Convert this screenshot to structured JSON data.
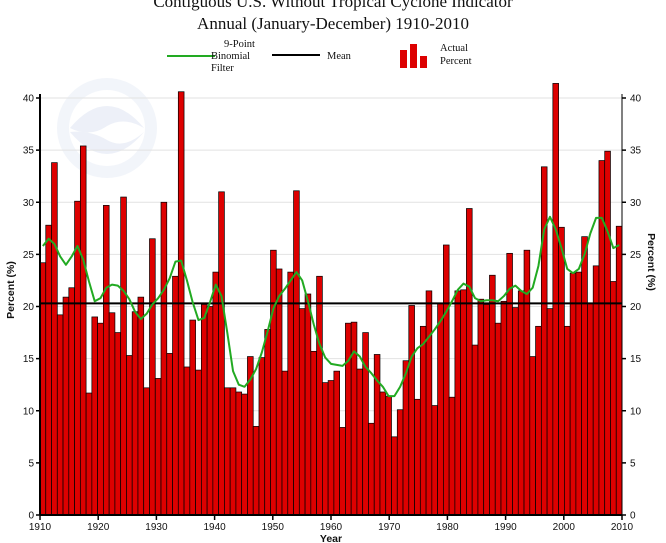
{
  "chart_data": {
    "type": "bar",
    "title": "Contiguous U.S. Without Tropical Cyclone Indicator",
    "subtitle": "Annual (January-December) 1910-2010",
    "xlabel": "Year",
    "ylabel": "Percent (%)",
    "ylabel_right": "Percent (%)",
    "xlim": [
      1910,
      2010
    ],
    "ylim": [
      0,
      40
    ],
    "x_ticks": [
      "1910",
      "1920",
      "1930",
      "1940",
      "1950",
      "1960",
      "1970",
      "1980",
      "1990",
      "2000",
      "2010"
    ],
    "y_ticks": [
      "0",
      "5",
      "10",
      "15",
      "20",
      "25",
      "30",
      "35",
      "40"
    ],
    "grid": true,
    "legend": {
      "position": "top",
      "filter_label": [
        "9-Point",
        "Binomial",
        "Filter"
      ],
      "mean_label": "Mean",
      "bars_label": [
        "Actual",
        "Percent"
      ]
    },
    "colors": {
      "bars": "#dd0000",
      "bar_edge": "#000000",
      "filter": "#22aa22",
      "mean": "#000000",
      "grid": "#e2e2e2"
    },
    "mean": 20.3,
    "years": [
      1910,
      1911,
      1912,
      1913,
      1914,
      1915,
      1916,
      1917,
      1918,
      1919,
      1920,
      1921,
      1922,
      1923,
      1924,
      1925,
      1926,
      1927,
      1928,
      1929,
      1930,
      1931,
      1932,
      1933,
      1934,
      1935,
      1936,
      1937,
      1938,
      1939,
      1940,
      1941,
      1942,
      1943,
      1944,
      1945,
      1946,
      1947,
      1948,
      1949,
      1950,
      1951,
      1952,
      1953,
      1954,
      1955,
      1956,
      1957,
      1958,
      1959,
      1960,
      1961,
      1962,
      1963,
      1964,
      1965,
      1966,
      1967,
      1968,
      1969,
      1970,
      1971,
      1972,
      1973,
      1974,
      1975,
      1976,
      1977,
      1978,
      1979,
      1980,
      1981,
      1982,
      1983,
      1984,
      1985,
      1986,
      1987,
      1988,
      1989,
      1990,
      1991,
      1992,
      1993,
      1994,
      1995,
      1996,
      1997,
      1998,
      1999,
      2000,
      2001,
      2002,
      2003,
      2004,
      2005,
      2006,
      2007,
      2008,
      2009,
      2010
    ],
    "series": [
      {
        "name": "Actual Percent",
        "values": [
          24.2,
          27.8,
          33.8,
          19.2,
          20.9,
          21.8,
          30.1,
          35.4,
          11.7,
          19.0,
          18.4,
          29.7,
          19.4,
          17.5,
          30.5,
          15.3,
          19.5,
          20.9,
          12.2,
          26.5,
          13.1,
          30.0,
          15.5,
          22.9,
          40.6,
          14.2,
          18.7,
          13.9,
          20.2,
          20.0,
          23.3,
          31.0,
          12.2,
          12.2,
          11.8,
          11.6,
          15.2,
          8.5,
          15.1,
          17.8,
          25.4,
          23.6,
          13.8,
          23.3,
          31.1,
          19.8,
          21.2,
          15.7,
          22.9,
          12.7,
          12.9,
          13.8,
          8.4,
          18.4,
          18.5,
          14.0,
          17.5,
          8.8,
          15.4,
          11.8,
          11.4,
          7.5,
          10.1,
          14.8,
          20.1,
          11.1,
          18.1,
          21.5,
          10.5,
          20.3,
          25.9,
          11.3,
          21.5,
          21.6,
          29.4,
          16.3,
          20.7,
          20.2,
          23.0,
          18.4,
          20.5,
          25.1,
          19.9,
          21.5,
          25.4,
          15.2,
          18.1,
          33.4,
          19.8,
          41.4,
          27.6,
          18.1,
          23.2,
          23.3,
          26.7,
          20.3,
          23.9,
          34.0,
          34.9,
          22.4,
          27.7
        ]
      },
      {
        "name": "9-Point Binomial Filter",
        "values": [
          25.8,
          26.5,
          26.0,
          24.8,
          24.0,
          24.8,
          25.8,
          24.5,
          22.4,
          20.5,
          20.8,
          21.8,
          22.1,
          22.0,
          21.5,
          20.7,
          19.5,
          18.8,
          19.3,
          20.2,
          20.8,
          21.6,
          22.7,
          24.3,
          24.4,
          22.5,
          20.4,
          18.7,
          18.9,
          20.4,
          22.1,
          21.0,
          17.5,
          13.8,
          12.5,
          12.3,
          13.0,
          14.0,
          15.6,
          17.6,
          19.8,
          21.0,
          21.7,
          22.5,
          23.3,
          22.5,
          20.5,
          18.3,
          16.4,
          15.1,
          14.5,
          14.4,
          14.3,
          14.8,
          15.7,
          15.2,
          14.2,
          13.6,
          12.9,
          12.3,
          11.4,
          11.4,
          12.3,
          13.6,
          15.2,
          16.0,
          16.4,
          17.1,
          17.8,
          18.6,
          19.5,
          20.5,
          21.6,
          22.2,
          21.9,
          20.8,
          20.5,
          20.6,
          20.6,
          20.5,
          21.0,
          21.7,
          22.0,
          21.5,
          21.2,
          21.8,
          23.9,
          27.4,
          28.6,
          27.4,
          25.6,
          23.6,
          23.2,
          23.6,
          25.0,
          27.0,
          28.5,
          28.5,
          27.2,
          25.6,
          25.9
        ]
      }
    ]
  }
}
